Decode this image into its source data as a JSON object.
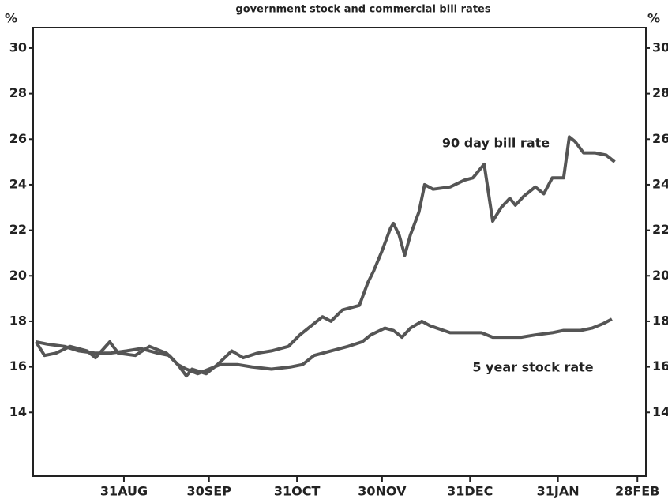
{
  "chart_data": {
    "type": "line",
    "title": "government stock and commercial bill rates",
    "y_label": "%",
    "y2_label": "%",
    "xlim": [
      -1,
      215
    ],
    "xticks": [
      {
        "value": 31,
        "label": "31AUG"
      },
      {
        "value": 61,
        "label": "30SEP"
      },
      {
        "value": 92,
        "label": "31OCT"
      },
      {
        "value": 122,
        "label": "30NOV"
      },
      {
        "value": 153,
        "label": "31DEC"
      },
      {
        "value": 184,
        "label": "31JAN"
      },
      {
        "value": 212,
        "label": "28FEB"
      }
    ],
    "ylim": [
      11.2,
      30.9
    ],
    "yticks": [
      14,
      16,
      18,
      20,
      22,
      24,
      26,
      28,
      30
    ],
    "annotations": [
      "90 day bill rate",
      "5 year stock rate"
    ],
    "series": [
      {
        "name": "90 day bill rate",
        "color": "#555555",
        "x": [
          0,
          3,
          7,
          12,
          18,
          21,
          26,
          29,
          35,
          40,
          46,
          50,
          53,
          55,
          60,
          64,
          69,
          73,
          78,
          83,
          89,
          93,
          97,
          101,
          104,
          108,
          114,
          117,
          119,
          122,
          125,
          126,
          128,
          130,
          132,
          135,
          137,
          140,
          146,
          151,
          154,
          158,
          161,
          164,
          167,
          169,
          172,
          176,
          179,
          182,
          186,
          188,
          190,
          193,
          197,
          201,
          204
        ],
        "values": [
          17.1,
          16.5,
          16.6,
          16.9,
          16.7,
          16.4,
          17.1,
          16.6,
          16.5,
          16.9,
          16.6,
          16.1,
          15.6,
          15.9,
          15.7,
          16.1,
          16.7,
          16.4,
          16.6,
          16.7,
          16.9,
          17.4,
          17.8,
          18.2,
          18.0,
          18.5,
          18.7,
          19.7,
          20.2,
          21.1,
          22.1,
          22.3,
          21.8,
          20.9,
          21.8,
          22.8,
          24.0,
          23.8,
          23.9,
          24.2,
          24.3,
          24.9,
          22.4,
          23.0,
          23.4,
          23.1,
          23.5,
          23.9,
          23.6,
          24.3,
          24.3,
          26.1,
          25.9,
          25.4,
          25.4,
          25.3,
          25.0
        ]
      },
      {
        "name": "5 year stock rate",
        "color": "#555555",
        "x": [
          0,
          4,
          10,
          15,
          21,
          26,
          32,
          37,
          43,
          47,
          50,
          53,
          57,
          61,
          65,
          71,
          76,
          83,
          90,
          94,
          98,
          104,
          110,
          115,
          118,
          123,
          126,
          129,
          132,
          136,
          139,
          146,
          151,
          157,
          161,
          167,
          171,
          176,
          182,
          186,
          192,
          196,
          200,
          203
        ],
        "values": [
          17.1,
          17.0,
          16.9,
          16.7,
          16.6,
          16.6,
          16.7,
          16.8,
          16.6,
          16.5,
          16.1,
          15.9,
          15.7,
          15.9,
          16.1,
          16.1,
          16.0,
          15.9,
          16.0,
          16.1,
          16.5,
          16.7,
          16.9,
          17.1,
          17.4,
          17.7,
          17.6,
          17.3,
          17.7,
          18.0,
          17.8,
          17.5,
          17.5,
          17.5,
          17.3,
          17.3,
          17.3,
          17.4,
          17.5,
          17.6,
          17.6,
          17.7,
          17.9,
          18.1
        ]
      }
    ]
  }
}
